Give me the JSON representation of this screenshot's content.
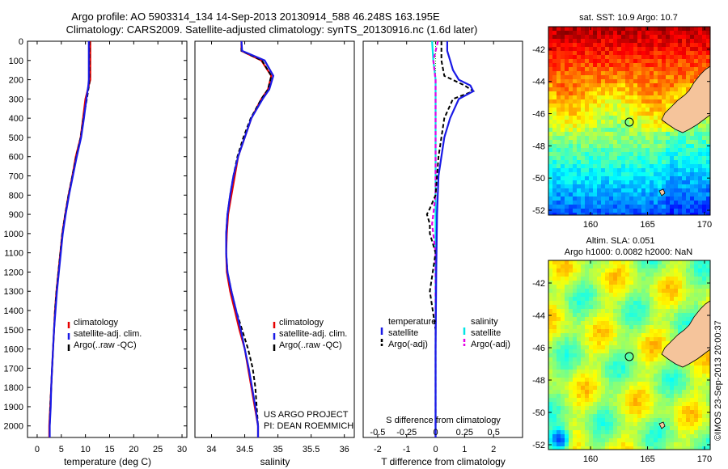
{
  "header": {
    "line1": "Argo profile: AO 5903314_134 14-Sep-2013 20130914_588 46.248S 163.195E",
    "line2": "Climatology: CARS2009. Satellite-adjusted climatology: synTS_20130916.nc (1.6d later)"
  },
  "depth_ticks": [
    "0",
    "100",
    "200",
    "300",
    "400",
    "500",
    "600",
    "700",
    "800",
    "900",
    "1000",
    "1100",
    "1200",
    "1300",
    "1400",
    "1500",
    "1600",
    "1700",
    "1800",
    "1900",
    "2000"
  ],
  "colors": {
    "clim": "#e60000",
    "sat": "#1a1ae6",
    "argo": "#000000",
    "sat_s": "#00e5e5",
    "argo_s": "#e600e6",
    "land": "#f5c49b"
  },
  "temp_panel": {
    "xlabel": "temperature (deg C)",
    "xticks": [
      "0",
      "5",
      "10",
      "15",
      "20",
      "25",
      "30"
    ],
    "xlim": [
      -2,
      31
    ],
    "legend": [
      "climatology",
      "satellite-adj. clim.",
      "Argo(..raw -QC)"
    ]
  },
  "sal_panel": {
    "xlabel": "salinity",
    "xticks": [
      "34",
      "34.5",
      "35",
      "35.5",
      "36"
    ],
    "xlim": [
      33.75,
      36.15
    ],
    "legend": [
      "climatology",
      "satellite-adj. clim.",
      "Argo(..raw -QC)"
    ],
    "credit1": "US ARGO PROJECT",
    "credit2": "PI: DEAN ROEMMICH"
  },
  "diff_panel": {
    "xlabel": "T difference from climatology",
    "xticks": [
      "-2",
      "-1",
      "0",
      "1",
      "2"
    ],
    "xlim": [
      -2.5,
      3
    ],
    "s_title": "S difference from climatology",
    "s_ticks": [
      "-0.5",
      "-0.25",
      "0",
      "0.25",
      "0.5"
    ],
    "legend_t_title": "temperature",
    "legend_s_title": "salinity",
    "legend_t": [
      "satellite",
      "Argo(-adj)"
    ],
    "legend_s": [
      "satellite",
      "Argo(-adj)"
    ]
  },
  "chart_data": {
    "type": "line",
    "y_reversed": true,
    "ylim": [
      0,
      2060
    ],
    "temperature": {
      "climatology": [
        [
          11.0,
          0
        ],
        [
          11.0,
          100
        ],
        [
          11.0,
          200
        ],
        [
          10.5,
          250
        ],
        [
          10.0,
          300
        ],
        [
          9.5,
          400
        ],
        [
          9.0,
          500
        ],
        [
          8.0,
          600
        ],
        [
          7.3,
          700
        ],
        [
          6.5,
          800
        ],
        [
          5.8,
          900
        ],
        [
          5.2,
          1000
        ],
        [
          4.8,
          1100
        ],
        [
          4.4,
          1200
        ],
        [
          4.0,
          1300
        ],
        [
          3.7,
          1400
        ],
        [
          3.5,
          1500
        ],
        [
          3.3,
          1600
        ],
        [
          3.1,
          1700
        ],
        [
          2.9,
          1800
        ],
        [
          2.7,
          1900
        ],
        [
          2.5,
          2000
        ],
        [
          2.5,
          2060
        ]
      ],
      "satellite": [
        [
          10.7,
          0
        ],
        [
          10.7,
          100
        ],
        [
          10.7,
          200
        ],
        [
          10.6,
          230
        ],
        [
          10.2,
          300
        ],
        [
          9.7,
          400
        ],
        [
          9.1,
          500
        ],
        [
          8.2,
          600
        ],
        [
          7.4,
          700
        ],
        [
          6.6,
          800
        ],
        [
          5.9,
          900
        ],
        [
          5.3,
          1000
        ],
        [
          4.9,
          1100
        ],
        [
          4.5,
          1200
        ],
        [
          4.1,
          1300
        ],
        [
          3.8,
          1400
        ],
        [
          3.5,
          1500
        ],
        [
          3.3,
          1600
        ],
        [
          3.1,
          1700
        ],
        [
          2.9,
          1800
        ],
        [
          2.8,
          1900
        ],
        [
          2.6,
          2000
        ],
        [
          2.6,
          2060
        ]
      ],
      "argo": [
        [
          10.8,
          0
        ],
        [
          10.8,
          150
        ],
        [
          10.8,
          220
        ],
        [
          10.3,
          300
        ],
        [
          9.6,
          400
        ],
        [
          9.0,
          500
        ],
        [
          8.1,
          600
        ],
        [
          7.3,
          700
        ],
        [
          6.5,
          800
        ],
        [
          5.8,
          900
        ],
        [
          5.2,
          1000
        ],
        [
          4.8,
          1100
        ],
        [
          4.4,
          1200
        ],
        [
          4.0,
          1300
        ],
        [
          3.7,
          1400
        ],
        [
          3.5,
          1500
        ],
        [
          3.3,
          1600
        ],
        [
          3.1,
          1700
        ],
        [
          2.9,
          1800
        ],
        [
          2.7,
          1900
        ],
        [
          2.6,
          2000
        ],
        [
          2.6,
          2060
        ]
      ]
    },
    "salinity": {
      "climatology": [
        [
          34.45,
          0
        ],
        [
          34.45,
          50
        ],
        [
          34.75,
          100
        ],
        [
          34.9,
          180
        ],
        [
          34.85,
          250
        ],
        [
          34.75,
          300
        ],
        [
          34.6,
          400
        ],
        [
          34.5,
          500
        ],
        [
          34.4,
          600
        ],
        [
          34.35,
          700
        ],
        [
          34.3,
          800
        ],
        [
          34.25,
          900
        ],
        [
          34.23,
          1000
        ],
        [
          34.22,
          1100
        ],
        [
          34.23,
          1200
        ],
        [
          34.28,
          1300
        ],
        [
          34.35,
          1400
        ],
        [
          34.42,
          1500
        ],
        [
          34.5,
          1600
        ],
        [
          34.55,
          1700
        ],
        [
          34.6,
          1800
        ],
        [
          34.65,
          1900
        ],
        [
          34.7,
          2000
        ],
        [
          34.7,
          2060
        ]
      ],
      "satellite": [
        [
          34.45,
          0
        ],
        [
          34.46,
          50
        ],
        [
          34.8,
          100
        ],
        [
          34.93,
          180
        ],
        [
          34.87,
          250
        ],
        [
          34.77,
          300
        ],
        [
          34.6,
          400
        ],
        [
          34.5,
          500
        ],
        [
          34.4,
          600
        ],
        [
          34.33,
          700
        ],
        [
          34.28,
          800
        ],
        [
          34.24,
          900
        ],
        [
          34.22,
          1000
        ],
        [
          34.22,
          1100
        ],
        [
          34.24,
          1200
        ],
        [
          34.3,
          1300
        ],
        [
          34.37,
          1400
        ],
        [
          34.44,
          1500
        ],
        [
          34.5,
          1600
        ],
        [
          34.56,
          1700
        ],
        [
          34.61,
          1800
        ],
        [
          34.66,
          1900
        ],
        [
          34.7,
          2000
        ],
        [
          34.7,
          2060
        ]
      ],
      "argo": [
        [
          34.45,
          0
        ],
        [
          34.45,
          50
        ],
        [
          34.76,
          100
        ],
        [
          34.9,
          180
        ],
        [
          34.85,
          250
        ],
        [
          34.75,
          300
        ],
        [
          34.59,
          400
        ],
        [
          34.48,
          500
        ],
        [
          34.39,
          600
        ],
        [
          34.33,
          700
        ],
        [
          34.28,
          800
        ],
        [
          34.24,
          900
        ],
        [
          34.22,
          1000
        ],
        [
          34.22,
          1100
        ],
        [
          34.24,
          1200
        ],
        [
          34.3,
          1300
        ],
        [
          34.37,
          1400
        ],
        [
          34.46,
          1500
        ],
        [
          34.55,
          1600
        ],
        [
          34.62,
          1700
        ],
        [
          34.66,
          1800
        ],
        [
          34.68,
          1900
        ],
        [
          34.7,
          2000
        ],
        [
          34.7,
          2060
        ]
      ]
    },
    "t_difference": {
      "satellite": [
        [
          0.4,
          0
        ],
        [
          0.4,
          50
        ],
        [
          0.5,
          100
        ],
        [
          0.6,
          150
        ],
        [
          0.8,
          200
        ],
        [
          1.2,
          230
        ],
        [
          1.3,
          260
        ],
        [
          0.8,
          300
        ],
        [
          0.5,
          400
        ],
        [
          0.3,
          500
        ],
        [
          0.2,
          600
        ],
        [
          0.1,
          700
        ],
        [
          0.05,
          900
        ],
        [
          0.02,
          1200
        ],
        [
          0.0,
          1600
        ],
        [
          0.0,
          2060
        ]
      ],
      "argo": [
        [
          0.2,
          0
        ],
        [
          0.2,
          100
        ],
        [
          0.3,
          180
        ],
        [
          1.0,
          230
        ],
        [
          1.3,
          260
        ],
        [
          0.6,
          300
        ],
        [
          0.3,
          400
        ],
        [
          0.1,
          600
        ],
        [
          0.0,
          800
        ],
        [
          -0.2,
          870
        ],
        [
          -0.3,
          900
        ],
        [
          -0.2,
          950
        ],
        [
          -0.2,
          1000
        ],
        [
          -0.1,
          1050
        ],
        [
          0.0,
          1100
        ],
        [
          -0.1,
          1200
        ],
        [
          -0.2,
          1300
        ],
        [
          -0.1,
          1400
        ],
        [
          0.0,
          1500
        ],
        [
          0.0,
          1700
        ],
        [
          0.0,
          2060
        ]
      ]
    },
    "s_difference": {
      "satellite": [
        [
          -0.03,
          0
        ],
        [
          -0.02,
          100
        ],
        [
          0.0,
          200
        ],
        [
          0.0,
          400
        ],
        [
          0.0,
          1000
        ],
        [
          0.0,
          2060
        ]
      ],
      "argo": [
        [
          0.02,
          0
        ],
        [
          -0.02,
          100
        ],
        [
          0.0,
          200
        ],
        [
          0.0,
          500
        ],
        [
          0.0,
          800
        ],
        [
          -0.03,
          950
        ],
        [
          0.0,
          1100
        ],
        [
          0.0,
          1300
        ],
        [
          0.0,
          1500
        ],
        [
          0.0,
          2060
        ]
      ]
    }
  },
  "map_sst": {
    "title": "sat. SST: 10.9 Argo: 10.7",
    "lat_ticks": [
      "-42",
      "-44",
      "-46",
      "-48",
      "-50",
      "-52"
    ],
    "lon_ticks": [
      "160",
      "165",
      "170"
    ]
  },
  "map_sla": {
    "title1": "Altim. SLA: 0.051",
    "title2": "Argo h1000: 0.0082 h2000: NaN",
    "lat_ticks": [
      "-42",
      "-44",
      "-46",
      "-48",
      "-50",
      "-52"
    ],
    "lon_ticks": [
      "160",
      "165",
      "170"
    ]
  },
  "side_credit": "©IMOS 23-Sep-2013 20:00:37"
}
